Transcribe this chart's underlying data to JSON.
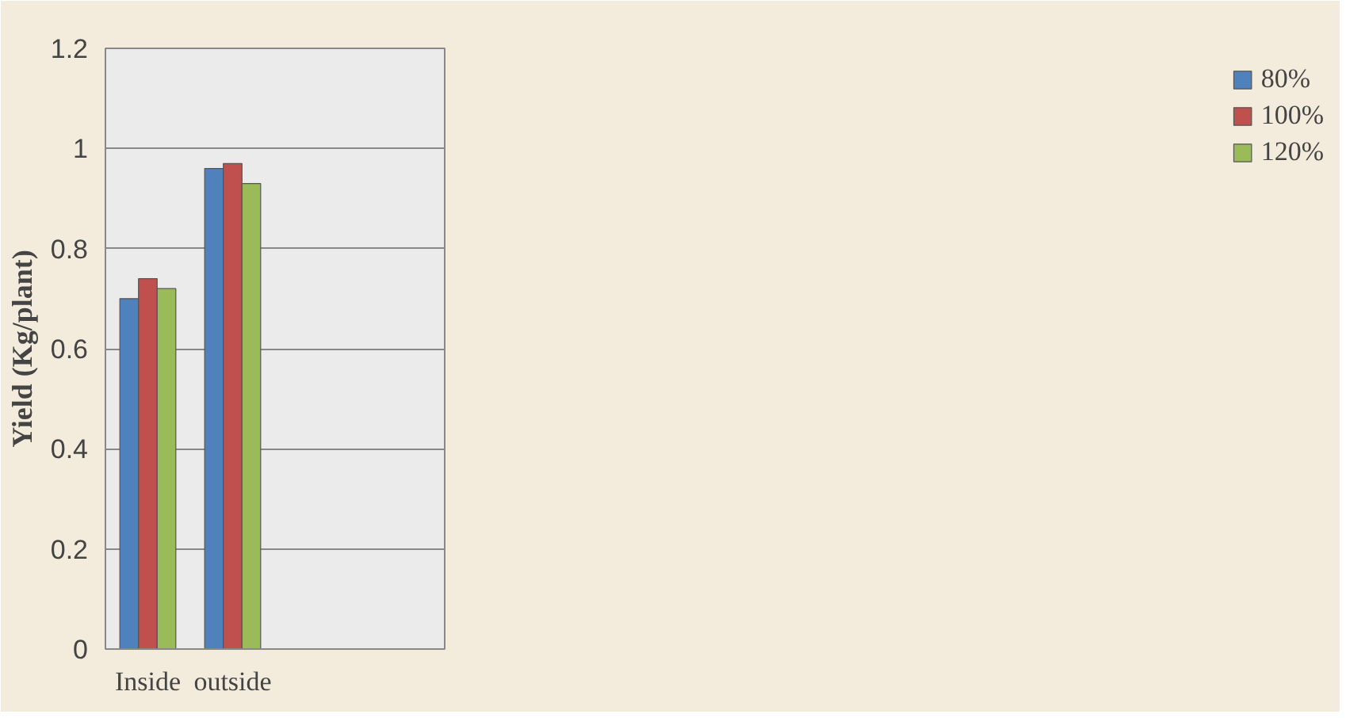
{
  "chart_data": {
    "type": "bar",
    "ylabel": "Yield (Kg/plant)",
    "categories": [
      "Inside",
      "outside",
      null,
      null
    ],
    "series": [
      {
        "name": "80%",
        "color": "#4f81bd",
        "values": [
          0.7,
          0.96,
          null,
          null
        ]
      },
      {
        "name": "100%",
        "color": "#c0504d",
        "values": [
          0.74,
          0.97,
          null,
          null
        ]
      },
      {
        "name": "120%",
        "color": "#9bbb59",
        "values": [
          0.72,
          0.93,
          null,
          null
        ]
      }
    ],
    "ylim": [
      0,
      1.2
    ],
    "yticks": [
      0,
      0.2,
      0.4,
      0.6,
      0.8,
      1,
      1.2
    ],
    "grid": "y",
    "legend": "right"
  }
}
